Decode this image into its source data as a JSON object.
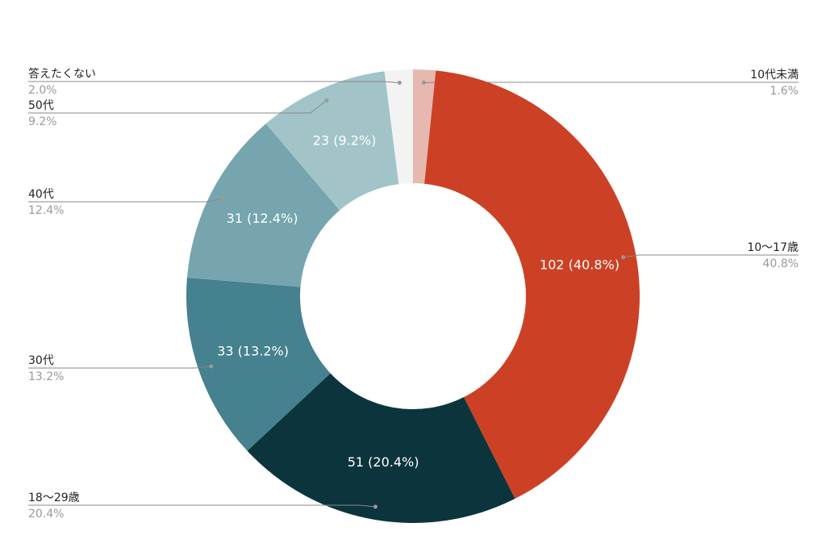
{
  "chart_data": {
    "type": "donut",
    "categories": [
      "10代未満",
      "10〜17歳",
      "18〜29歳",
      "30代",
      "40代",
      "50代",
      "答えたくない"
    ],
    "values": [
      4,
      102,
      51,
      33,
      31,
      23,
      5
    ],
    "value_labels": [
      null,
      "102 (40.8%)",
      "51 (20.4%)",
      "33 (13.2%)",
      "31 (12.4%)",
      "23 (9.2%)",
      null
    ],
    "percents": [
      1.6,
      40.8,
      20.4,
      13.2,
      12.4,
      9.2,
      2.0
    ],
    "percent_labels": [
      "1.6%",
      "40.8%",
      "20.4%",
      "13.2%",
      "12.4%",
      "9.2%",
      "2.0%"
    ],
    "colors": [
      "#e6b8af",
      "#cc4125",
      "#0c343d",
      "#45818e",
      "#76a5af",
      "#a2c4c9",
      "#f3f3f3"
    ]
  }
}
